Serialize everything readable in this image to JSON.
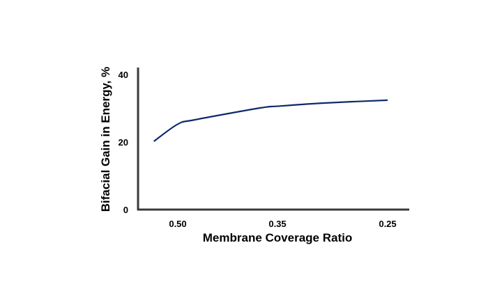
{
  "chart_data": {
    "type": "line",
    "title": "",
    "xlabel": "Membrane Coverage Ratio",
    "ylabel": "Bifacial Gain in Energy, %",
    "x_ticks": [
      0.5,
      0.35,
      0.25
    ],
    "x_tick_labels": [
      "0.50",
      "0.35",
      "0.25"
    ],
    "x_reversed": true,
    "y_ticks": [
      0,
      20,
      40
    ],
    "y_tick_labels": [
      "0",
      "20",
      "40"
    ],
    "ylim": [
      0,
      40
    ],
    "grid": false,
    "legend": "none",
    "series": [
      {
        "color": "#0d2a6b",
        "x": [
          0.536,
          0.5,
          0.474,
          0.376,
          0.35,
          0.311,
          0.25
        ],
        "y": [
          20.2,
          25.3,
          26.6,
          30.1,
          30.6,
          31.5,
          32.4
        ]
      }
    ]
  }
}
